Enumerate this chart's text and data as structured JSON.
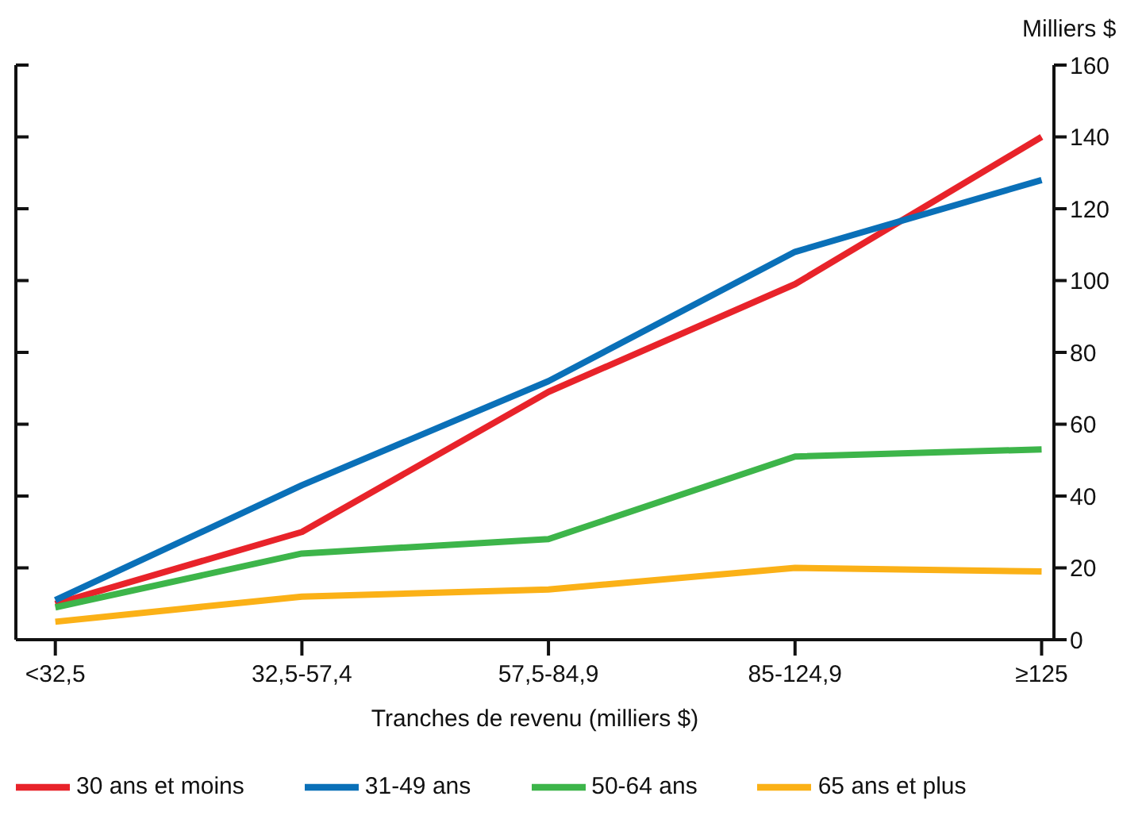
{
  "chart_data": {
    "type": "line",
    "xlabel": "Tranches de revenu (milliers $)",
    "ylabel": "Milliers $",
    "categories": [
      "<32,5",
      "32,5-57,4",
      "57,5-84,9",
      "85-124,9",
      "≥125"
    ],
    "series": [
      {
        "name": "30 ans et moins",
        "color": "#e8232a",
        "values": [
          10,
          30,
          69,
          99,
          140
        ]
      },
      {
        "name": "31-49 ans",
        "color": "#0a70b8",
        "values": [
          11,
          43,
          72,
          108,
          128
        ]
      },
      {
        "name": "50-64 ans",
        "color": "#3db54a",
        "values": [
          9,
          24,
          28,
          51,
          53
        ]
      },
      {
        "name": "65 ans et plus",
        "color": "#fbb117",
        "values": [
          5,
          12,
          14,
          20,
          19
        ]
      }
    ],
    "ylim": [
      0,
      160
    ],
    "yticks": [
      0,
      20,
      40,
      60,
      80,
      100,
      120,
      140,
      160
    ],
    "grid": false,
    "legend": "bottom",
    "marker": "none",
    "line_style": "solid"
  }
}
